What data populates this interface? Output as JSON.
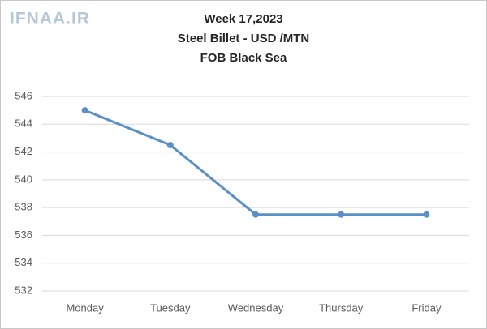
{
  "watermark": "IFNAA.IR",
  "chart_data": {
    "type": "line",
    "title": [
      "Week 17,2023",
      "Steel Billet - USD /MTN",
      "FOB Black Sea"
    ],
    "categories": [
      "Monday",
      "Tuesday",
      "Wednesday",
      "Thursday",
      "Friday"
    ],
    "series": [
      {
        "name": "Steel Billet",
        "color": "#5b8fc7",
        "values": [
          545,
          542.5,
          537.5,
          537.5,
          537.5
        ]
      }
    ],
    "ylim": [
      532,
      546
    ],
    "yticks": [
      532,
      534,
      536,
      538,
      540,
      542,
      544,
      546
    ],
    "grid": true
  }
}
